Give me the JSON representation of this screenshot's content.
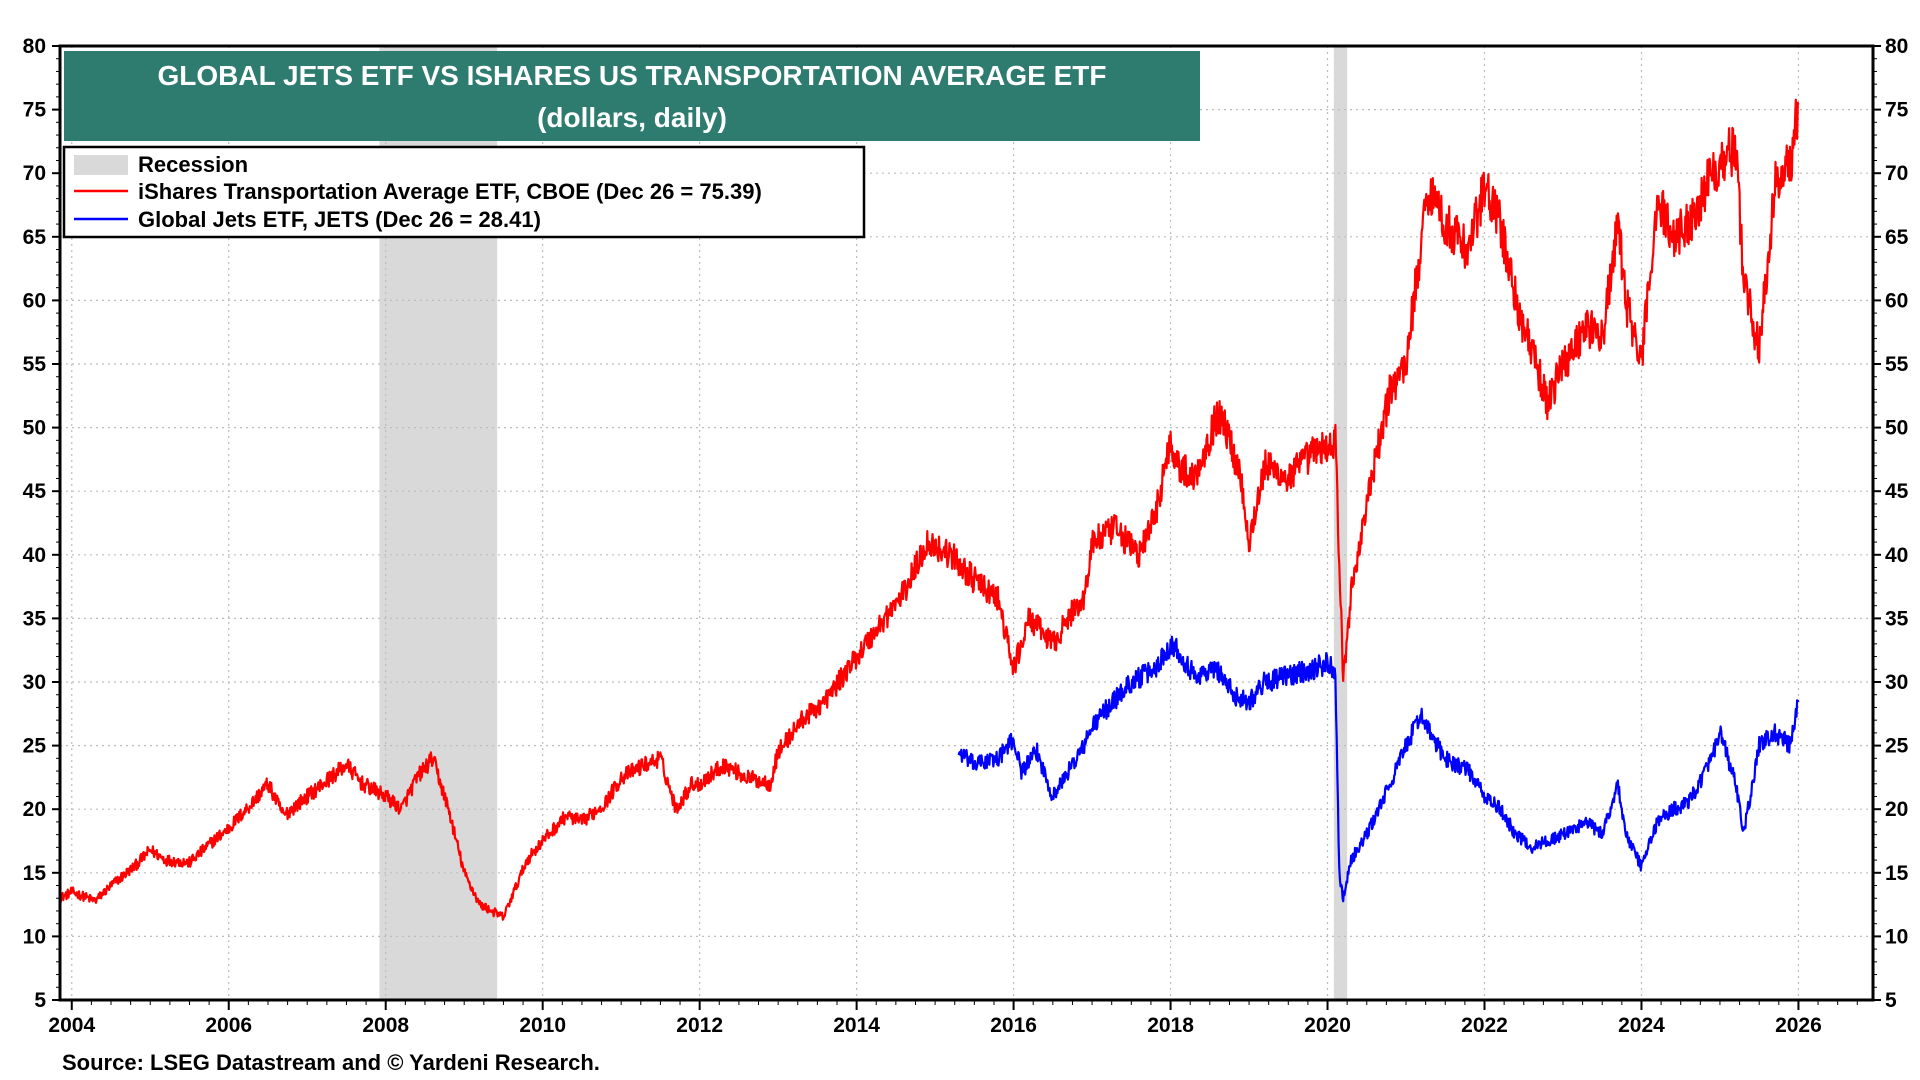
{
  "chart_data": {
    "type": "line",
    "title": "GLOBAL JETS ETF VS ISHARES US TRANSPORTATION AVERAGE ETF",
    "subtitle": "(dollars, daily)",
    "source": "Source: LSEG Datastream and © Yardeni Research.",
    "xlim": [
      2003.85,
      2026.95
    ],
    "ylim": [
      5,
      80
    ],
    "x_ticks": [
      "2004",
      "2006",
      "2008",
      "2010",
      "2012",
      "2014",
      "2016",
      "2018",
      "2020",
      "2022",
      "2024",
      "2026"
    ],
    "y_ticks": [
      "5",
      "10",
      "15",
      "20",
      "25",
      "30",
      "35",
      "40",
      "45",
      "50",
      "55",
      "60",
      "65",
      "70",
      "75",
      "80"
    ],
    "grid": true,
    "legend_position": "top-left",
    "recessions": [
      {
        "label": "Recession",
        "start": 2007.92,
        "end": 2009.42
      },
      {
        "label": "Recession",
        "start": 2020.08,
        "end": 2020.25
      }
    ],
    "legend": [
      {
        "label": "Recession",
        "color": "#d9d9d9"
      },
      {
        "label": "iShares Transportation Average ETF, CBOE (Dec 26 = 75.39)",
        "color": "#ff0000"
      },
      {
        "label": "Global Jets ETF, JETS (Dec 26 = 28.41)",
        "color": "#0000ff"
      }
    ],
    "series": [
      {
        "name": "iShares Transportation Average ETF, CBOE",
        "color": "#ff0000",
        "x": [
          2003.85,
          2004.0,
          2004.3,
          2004.5,
          2004.8,
          2005.0,
          2005.2,
          2005.5,
          2005.8,
          2006.0,
          2006.3,
          2006.5,
          2006.7,
          2007.0,
          2007.2,
          2007.5,
          2007.7,
          2008.0,
          2008.2,
          2008.4,
          2008.6,
          2008.8,
          2009.0,
          2009.2,
          2009.5,
          2009.8,
          2010.0,
          2010.3,
          2010.5,
          2010.8,
          2011.0,
          2011.3,
          2011.5,
          2011.7,
          2011.9,
          2012.0,
          2012.3,
          2012.6,
          2012.9,
          2013.0,
          2013.3,
          2013.6,
          2014.0,
          2014.3,
          2014.6,
          2014.9,
          2015.2,
          2015.5,
          2015.8,
          2016.0,
          2016.2,
          2016.5,
          2016.8,
          2016.9,
          2017.0,
          2017.3,
          2017.6,
          2017.8,
          2018.0,
          2018.1,
          2018.3,
          2018.6,
          2018.7,
          2018.9,
          2019.0,
          2019.2,
          2019.5,
          2019.8,
          2020.0,
          2020.1,
          2020.2,
          2020.3,
          2020.5,
          2020.8,
          2021.0,
          2021.2,
          2021.3,
          2021.5,
          2021.8,
          2022.0,
          2022.2,
          2022.4,
          2022.6,
          2022.8,
          2023.0,
          2023.3,
          2023.5,
          2023.7,
          2023.8,
          2024.0,
          2024.2,
          2024.4,
          2024.6,
          2024.9,
          2025.0,
          2025.2,
          2025.3,
          2025.5,
          2025.7,
          2025.9,
          2026.0
        ],
        "y": [
          13,
          13.5,
          12.8,
          14,
          15.5,
          16.8,
          16,
          15.8,
          17.5,
          18.5,
          20.5,
          22,
          19.5,
          21,
          22,
          23.5,
          22,
          21,
          20,
          22.5,
          24,
          20,
          15,
          12.5,
          11.5,
          16,
          17.5,
          19.5,
          19,
          20.5,
          22.5,
          23.5,
          24,
          20,
          22,
          22,
          23.5,
          22.5,
          22,
          24.5,
          27,
          28.5,
          32,
          34.5,
          37,
          41,
          40,
          38,
          36.5,
          31,
          35,
          33,
          36,
          36.5,
          41,
          42,
          40,
          43,
          49,
          47,
          46,
          51,
          50,
          46,
          41,
          47,
          46,
          48,
          48.5,
          49,
          30,
          37,
          44,
          53,
          55,
          65,
          69,
          66,
          64,
          69,
          66,
          60,
          56,
          52,
          55,
          58,
          57,
          66,
          60,
          55,
          68,
          65,
          66,
          70,
          71,
          72,
          62,
          56,
          69,
          71,
          75.39
        ]
      },
      {
        "name": "Global Jets ETF, JETS",
        "color": "#0000ff",
        "x": [
          2015.3,
          2015.5,
          2015.8,
          2016.0,
          2016.1,
          2016.3,
          2016.5,
          2016.7,
          2016.9,
          2017.0,
          2017.2,
          2017.5,
          2017.8,
          2018.0,
          2018.1,
          2018.3,
          2018.6,
          2018.8,
          2019.0,
          2019.2,
          2019.5,
          2019.8,
          2020.0,
          2020.1,
          2020.15,
          2020.2,
          2020.3,
          2020.5,
          2020.8,
          2021.0,
          2021.2,
          2021.3,
          2021.5,
          2021.8,
          2022.0,
          2022.2,
          2022.4,
          2022.6,
          2022.8,
          2023.0,
          2023.3,
          2023.5,
          2023.7,
          2023.8,
          2024.0,
          2024.2,
          2024.4,
          2024.6,
          2024.9,
          2025.0,
          2025.2,
          2025.3,
          2025.5,
          2025.7,
          2025.9,
          2026.0
        ],
        "y": [
          24.5,
          23.5,
          24,
          25.5,
          23,
          24.5,
          21,
          23,
          25,
          26.5,
          28,
          30,
          31,
          33,
          32.5,
          30.5,
          31,
          29,
          28.5,
          30,
          30.5,
          31,
          31.5,
          31,
          15,
          13,
          16,
          18,
          22,
          25,
          27.5,
          26,
          24,
          23,
          21,
          20,
          18,
          17,
          17.5,
          18,
          19,
          18,
          22,
          18,
          15.5,
          19,
          20,
          20.5,
          24,
          26,
          22,
          18,
          25,
          26,
          25,
          28.41
        ]
      }
    ]
  }
}
